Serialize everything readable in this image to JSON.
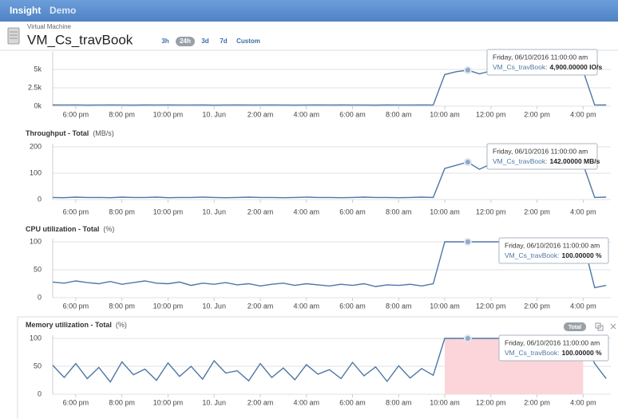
{
  "header": {
    "app": "Insight",
    "env": "Demo"
  },
  "resource": {
    "kind": "Virtual Machine",
    "name": "VM_Cs_travBook"
  },
  "ranges": [
    "3h",
    "24h",
    "3d",
    "7d",
    "Custom"
  ],
  "chart_data": [
    {
      "type": "line",
      "x": [
        17,
        17.5,
        18,
        18.5,
        19,
        19.5,
        20,
        20.5,
        21,
        21.5,
        22,
        22.5,
        23,
        23.5,
        24,
        24.5,
        25,
        25.5,
        26,
        26.5,
        27,
        27.5,
        28,
        28.5,
        29,
        29.5,
        30,
        30.5,
        31,
        31.5,
        32,
        32.5,
        33,
        33.5,
        34,
        34.5,
        35,
        35.5,
        36,
        36.5,
        37,
        37.5,
        38,
        38.5,
        39,
        39.5,
        40,
        40.5,
        41
      ],
      "xlim": [
        17,
        41.2
      ],
      "xticks": [
        {
          "value": 18,
          "label": "6:00 pm"
        },
        {
          "value": 20,
          "label": "8:00 pm"
        },
        {
          "value": 22,
          "label": "10:00 pm"
        },
        {
          "value": 24,
          "label": "10. Jun"
        },
        {
          "value": 26,
          "label": "2:00 am"
        },
        {
          "value": 28,
          "label": "4:00 am"
        },
        {
          "value": 30,
          "label": "6:00 am"
        },
        {
          "value": 32,
          "label": "8:00 am"
        },
        {
          "value": 34,
          "label": "10:00 am"
        },
        {
          "value": 36,
          "label": "12:00 pm"
        },
        {
          "value": 38,
          "label": "2:00 pm"
        },
        {
          "value": 40,
          "label": "4:00 pm"
        }
      ],
      "series": [
        {
          "color": "#4d77a5",
          "values": [
            160,
            150,
            170,
            140,
            155,
            165,
            150,
            145,
            160,
            150,
            170,
            155,
            150,
            160,
            145,
            150,
            165,
            155,
            150,
            160,
            150,
            145,
            155,
            165,
            150,
            160,
            150,
            155,
            145,
            160,
            150,
            155,
            160,
            150,
            4300,
            4700,
            4900,
            4400,
            4800,
            4500,
            4700,
            4600,
            4800,
            4500,
            4700,
            4600,
            4800,
            150,
            160
          ]
        }
      ],
      "ylim": [
        0,
        7000
      ],
      "yticks": [
        {
          "value": 0,
          "label": "0k"
        },
        {
          "value": 2500,
          "label": "2.5k"
        },
        {
          "value": 5000,
          "label": "5k"
        }
      ],
      "grid": true,
      "tooltip": {
        "date": "Friday, 06/10/2016 11:00:00 am",
        "series": "VM_Cs_travBook:",
        "value": "4,900.00000 IO/s"
      }
    },
    {
      "type": "line",
      "title": "Throughput - Total",
      "unit": "(MB/s)",
      "x": [
        17,
        17.5,
        18,
        18.5,
        19,
        19.5,
        20,
        20.5,
        21,
        21.5,
        22,
        22.5,
        23,
        23.5,
        24,
        24.5,
        25,
        25.5,
        26,
        26.5,
        27,
        27.5,
        28,
        28.5,
        29,
        29.5,
        30,
        30.5,
        31,
        31.5,
        32,
        32.5,
        33,
        33.5,
        34,
        34.5,
        35,
        35.5,
        36,
        36.5,
        37,
        37.5,
        38,
        38.5,
        39,
        39.5,
        40,
        40.5,
        41
      ],
      "xlim": [
        17,
        41.2
      ],
      "xticks": [
        {
          "value": 18,
          "label": "6:00 pm"
        },
        {
          "value": 20,
          "label": "8:00 pm"
        },
        {
          "value": 22,
          "label": "10:00 pm"
        },
        {
          "value": 24,
          "label": "10. Jun"
        },
        {
          "value": 26,
          "label": "2:00 am"
        },
        {
          "value": 28,
          "label": "4:00 am"
        },
        {
          "value": 30,
          "label": "6:00 am"
        },
        {
          "value": 32,
          "label": "8:00 am"
        },
        {
          "value": 34,
          "label": "10:00 am"
        },
        {
          "value": 36,
          "label": "12:00 pm"
        },
        {
          "value": 38,
          "label": "2:00 pm"
        },
        {
          "value": 40,
          "label": "4:00 pm"
        }
      ],
      "series": [
        {
          "color": "#4d77a5",
          "values": [
            8,
            7,
            9,
            8,
            8,
            7,
            9,
            8,
            8,
            9,
            7,
            8,
            8,
            9,
            8,
            7,
            8,
            9,
            8,
            8,
            7,
            8,
            9,
            8,
            8,
            7,
            8,
            9,
            8,
            8,
            7,
            8,
            9,
            8,
            118,
            130,
            142,
            115,
            135,
            125,
            132,
            120,
            138,
            122,
            130,
            126,
            134,
            8,
            9
          ]
        }
      ],
      "ylim": [
        0,
        200
      ],
      "yticks": [
        0,
        100,
        200
      ],
      "grid": true,
      "tooltip": {
        "date": "Friday, 06/10/2016 11:00:00 am",
        "series": "VM_Cs_travBook:",
        "value": "142.00000 MB/s"
      }
    },
    {
      "type": "line",
      "title": "CPU utilization - Total",
      "unit": "(%)",
      "x": [
        17,
        17.5,
        18,
        18.5,
        19,
        19.5,
        20,
        20.5,
        21,
        21.5,
        22,
        22.5,
        23,
        23.5,
        24,
        24.5,
        25,
        25.5,
        26,
        26.5,
        27,
        27.5,
        28,
        28.5,
        29,
        29.5,
        30,
        30.5,
        31,
        31.5,
        32,
        32.5,
        33,
        33.5,
        34,
        34.5,
        35,
        35.5,
        36,
        36.5,
        37,
        37.5,
        38,
        38.5,
        39,
        39.5,
        40,
        40.5,
        41
      ],
      "xlim": [
        17,
        41.2
      ],
      "xticks": [
        {
          "value": 18,
          "label": "6:00 pm"
        },
        {
          "value": 20,
          "label": "8:00 pm"
        },
        {
          "value": 22,
          "label": "10:00 pm"
        },
        {
          "value": 24,
          "label": "10. Jun"
        },
        {
          "value": 26,
          "label": "2:00 am"
        },
        {
          "value": 28,
          "label": "4:00 am"
        },
        {
          "value": 30,
          "label": "6:00 am"
        },
        {
          "value": 32,
          "label": "8:00 am"
        },
        {
          "value": 34,
          "label": "10:00 am"
        },
        {
          "value": 36,
          "label": "12:00 pm"
        },
        {
          "value": 38,
          "label": "2:00 pm"
        },
        {
          "value": 40,
          "label": "4:00 pm"
        }
      ],
      "series": [
        {
          "color": "#4d77a5",
          "values": [
            28,
            26,
            30,
            27,
            25,
            29,
            24,
            27,
            30,
            26,
            25,
            28,
            22,
            26,
            24,
            27,
            23,
            25,
            21,
            24,
            26,
            22,
            25,
            23,
            21,
            24,
            22,
            25,
            20,
            23,
            22,
            24,
            21,
            25,
            100,
            100,
            100,
            100,
            100,
            100,
            100,
            100,
            100,
            100,
            100,
            100,
            100,
            18,
            22
          ]
        }
      ],
      "ylim": [
        0,
        100
      ],
      "yticks": [
        0,
        50,
        100
      ],
      "grid": true,
      "tooltip": {
        "date": "Friday, 06/10/2016 11:00:00 am",
        "series": "VM_Cs_travBook:",
        "value": "100.00000 %"
      }
    },
    {
      "type": "line",
      "title": "Memory utilization - Total",
      "unit": "(%)",
      "badge": "Total",
      "x": [
        17,
        17.5,
        18,
        18.5,
        19,
        19.5,
        20,
        20.5,
        21,
        21.5,
        22,
        22.5,
        23,
        23.5,
        24,
        24.5,
        25,
        25.5,
        26,
        26.5,
        27,
        27.5,
        28,
        28.5,
        29,
        29.5,
        30,
        30.5,
        31,
        31.5,
        32,
        32.5,
        33,
        33.5,
        34,
        34.5,
        35,
        35.5,
        36,
        36.5,
        37,
        37.5,
        38,
        38.5,
        39,
        39.5,
        40,
        40.5,
        41
      ],
      "xlim": [
        17,
        41.2
      ],
      "xticks": [
        {
          "value": 18,
          "label": "6:00 pm"
        },
        {
          "value": 20,
          "label": "8:00 pm"
        },
        {
          "value": 22,
          "label": "10:00 pm"
        },
        {
          "value": 24,
          "label": "10. Jun"
        },
        {
          "value": 26,
          "label": "2:00 am"
        },
        {
          "value": 28,
          "label": "4:00 am"
        },
        {
          "value": 30,
          "label": "6:00 am"
        },
        {
          "value": 32,
          "label": "8:00 am"
        },
        {
          "value": 34,
          "label": "10:00 am"
        },
        {
          "value": 36,
          "label": "12:00 pm"
        },
        {
          "value": 38,
          "label": "2:00 pm"
        },
        {
          "value": 40,
          "label": "4:00 pm"
        }
      ],
      "series": [
        {
          "color": "#4d77a5",
          "values": [
            52,
            30,
            55,
            28,
            48,
            22,
            58,
            35,
            45,
            25,
            56,
            32,
            50,
            27,
            60,
            38,
            42,
            24,
            55,
            30,
            47,
            26,
            53,
            36,
            44,
            28,
            57,
            33,
            49,
            23,
            51,
            29,
            46,
            34,
            100,
            100,
            100,
            100,
            100,
            100,
            100,
            100,
            100,
            100,
            100,
            100,
            100,
            55,
            28
          ]
        }
      ],
      "ylim": [
        0,
        100
      ],
      "yticks": [
        0,
        50,
        100
      ],
      "grid": true,
      "tooltip": {
        "date": "Friday, 06/10/2016 11:00:00 am",
        "series": "VM_Cs_travBook:",
        "value": "100.00000 %"
      }
    }
  ]
}
